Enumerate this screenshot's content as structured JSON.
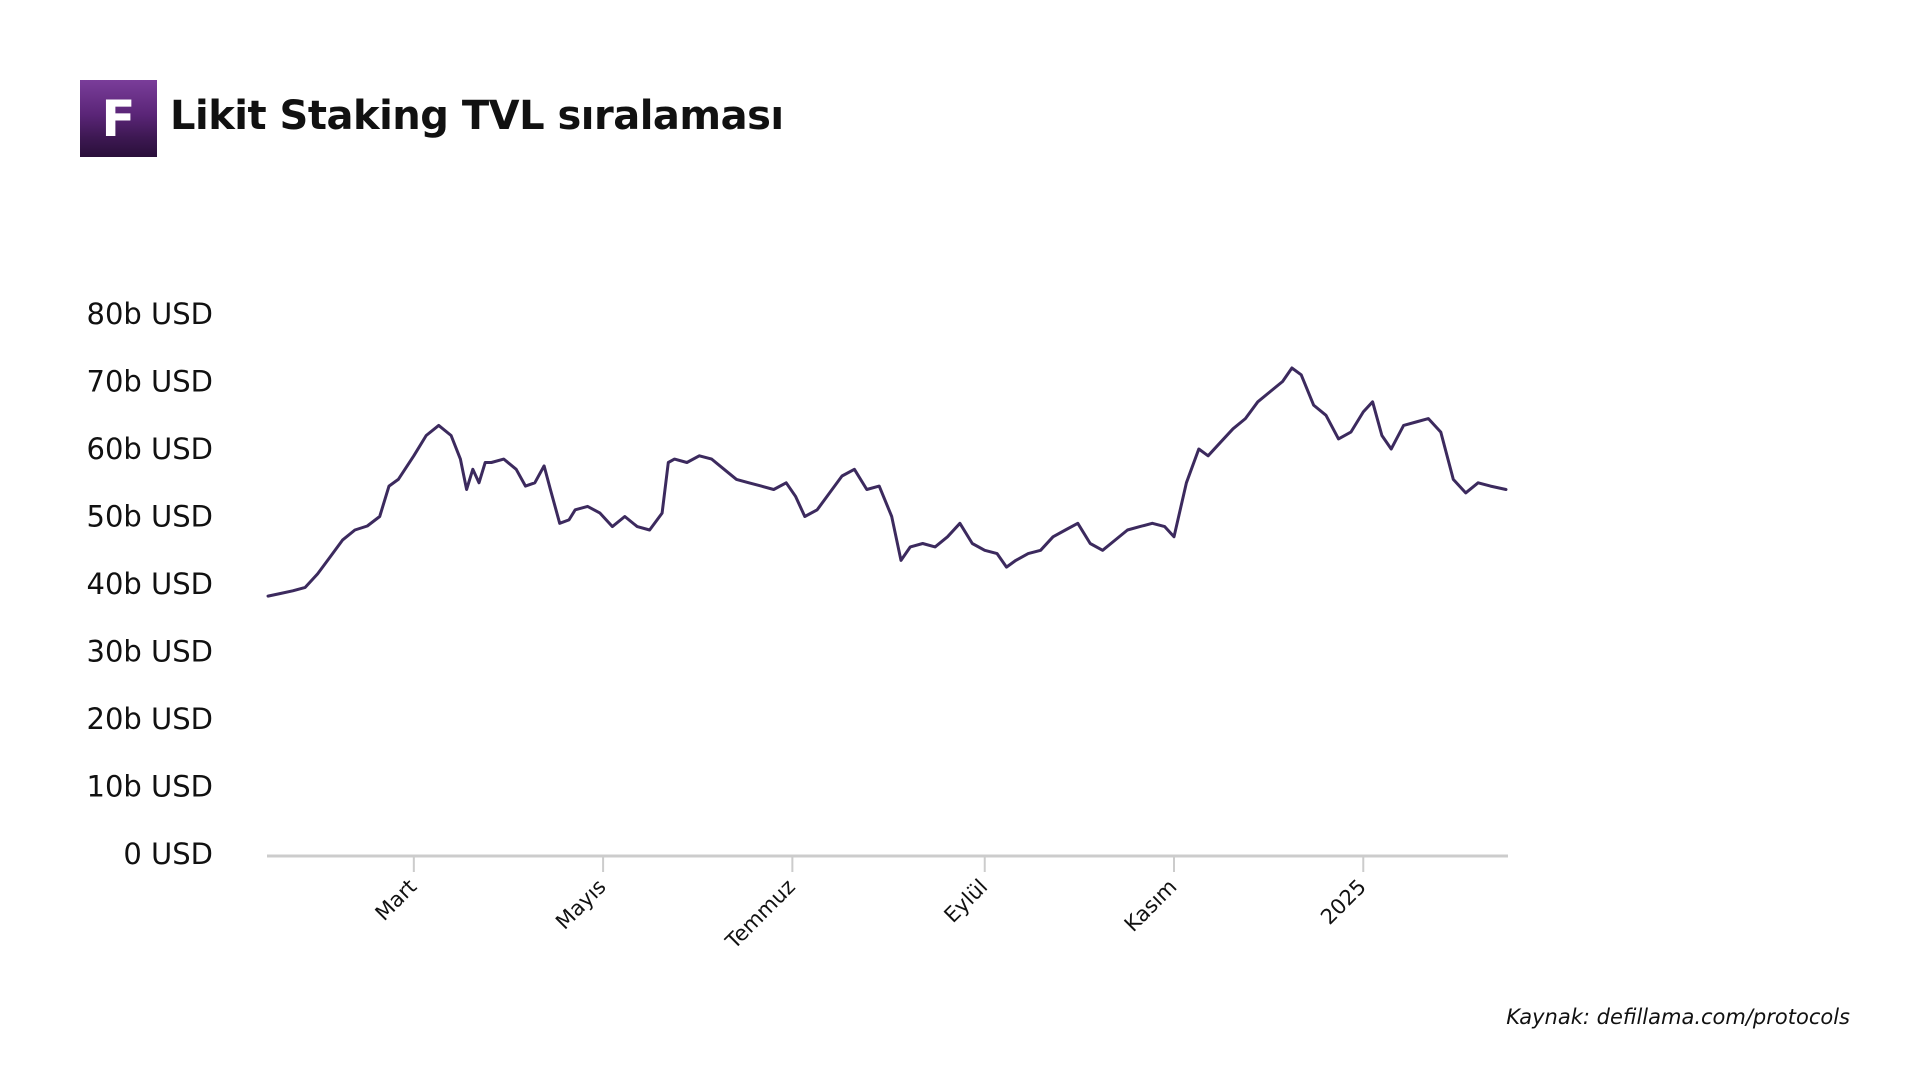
{
  "header": {
    "logo_letter": "F",
    "title": "Likit Staking TVL sıralaması"
  },
  "source": "Kaynak: defillama.com/protocols",
  "colors": {
    "line": "#3c2a5e",
    "axis": "#cccccc",
    "logo": "#5a2577"
  },
  "chart_data": {
    "type": "line",
    "title": "Likit Staking TVL sıralaması",
    "xlabel": "",
    "ylabel": "",
    "grid": false,
    "ylim": [
      0,
      80
    ],
    "yticks": [
      0,
      10,
      20,
      30,
      40,
      50,
      60,
      70,
      80
    ],
    "ytick_labels": [
      "0 USD",
      "10b USD",
      "20b USD",
      "30b USD",
      "40b USD",
      "50b USD",
      "60b USD",
      "70b USD",
      "80b USD"
    ],
    "xlim": [
      "2024-01-14",
      "2025-02-16"
    ],
    "xticks": [
      "2024-03-01",
      "2024-05-01",
      "2024-07-01",
      "2024-09-01",
      "2024-11-01",
      "2025-01-01"
    ],
    "xtick_labels": [
      "Mart",
      "Mayıs",
      "Temmuz",
      "Eylül",
      "Kasım",
      "2025"
    ],
    "series": [
      {
        "x": [
          "2024-01-14",
          "2024-01-18",
          "2024-01-22",
          "2024-01-26",
          "2024-01-30",
          "2024-02-03",
          "2024-02-07",
          "2024-02-11",
          "2024-02-15",
          "2024-02-19",
          "2024-02-22",
          "2024-02-25",
          "2024-03-01",
          "2024-03-05",
          "2024-03-09",
          "2024-03-13",
          "2024-03-16",
          "2024-03-18",
          "2024-03-20",
          "2024-03-22",
          "2024-03-24",
          "2024-03-26",
          "2024-03-30",
          "2024-04-03",
          "2024-04-06",
          "2024-04-09",
          "2024-04-12",
          "2024-04-14",
          "2024-04-17",
          "2024-04-20",
          "2024-04-22",
          "2024-04-26",
          "2024-04-30",
          "2024-05-04",
          "2024-05-08",
          "2024-05-12",
          "2024-05-16",
          "2024-05-20",
          "2024-05-22",
          "2024-05-24",
          "2024-05-28",
          "2024-06-01",
          "2024-06-05",
          "2024-06-09",
          "2024-06-13",
          "2024-06-17",
          "2024-06-21",
          "2024-06-25",
          "2024-06-29",
          "2024-07-02",
          "2024-07-05",
          "2024-07-09",
          "2024-07-13",
          "2024-07-17",
          "2024-07-21",
          "2024-07-25",
          "2024-07-29",
          "2024-08-02",
          "2024-08-05",
          "2024-08-08",
          "2024-08-12",
          "2024-08-16",
          "2024-08-20",
          "2024-08-24",
          "2024-08-28",
          "2024-09-01",
          "2024-09-05",
          "2024-09-08",
          "2024-09-11",
          "2024-09-15",
          "2024-09-19",
          "2024-09-23",
          "2024-09-27",
          "2024-10-01",
          "2024-10-05",
          "2024-10-09",
          "2024-10-13",
          "2024-10-17",
          "2024-10-21",
          "2024-10-25",
          "2024-10-29",
          "2024-11-01",
          "2024-11-05",
          "2024-11-09",
          "2024-11-12",
          "2024-11-16",
          "2024-11-20",
          "2024-11-24",
          "2024-11-28",
          "2024-12-02",
          "2024-12-06",
          "2024-12-09",
          "2024-12-12",
          "2024-12-16",
          "2024-12-20",
          "2024-12-24",
          "2024-12-28",
          "2025-01-01",
          "2025-01-04",
          "2025-01-07",
          "2025-01-10",
          "2025-01-14",
          "2025-01-18",
          "2025-01-22",
          "2025-01-26",
          "2025-01-30",
          "2025-02-03",
          "2025-02-07",
          "2025-02-11",
          "2025-02-16"
        ],
        "y": [
          38.2,
          38.6,
          39.0,
          39.5,
          41.5,
          44.0,
          46.5,
          48.0,
          48.6,
          50.0,
          54.5,
          55.5,
          59.0,
          62.0,
          63.5,
          62.0,
          58.5,
          54.0,
          57.0,
          55.0,
          58.0,
          58.0,
          58.5,
          57.0,
          54.5,
          55.0,
          57.5,
          54.0,
          49.0,
          49.5,
          51.0,
          51.5,
          50.5,
          48.5,
          50.0,
          48.5,
          48.0,
          50.5,
          58.0,
          58.5,
          58.0,
          59.0,
          58.5,
          57.0,
          55.5,
          55.0,
          54.5,
          54.0,
          55.0,
          53.0,
          50.0,
          51.0,
          53.5,
          56.0,
          57.0,
          54.0,
          54.5,
          50.0,
          43.5,
          45.5,
          46.0,
          45.5,
          47.0,
          49.0,
          46.0,
          45.0,
          44.5,
          42.5,
          43.5,
          44.5,
          45.0,
          47.0,
          48.0,
          49.0,
          46.0,
          45.0,
          46.5,
          48.0,
          48.5,
          49.0,
          48.5,
          47.0,
          55.0,
          60.0,
          59.0,
          61.0,
          63.0,
          64.5,
          67.0,
          68.5,
          70.0,
          72.0,
          71.0,
          66.5,
          65.0,
          61.5,
          62.5,
          65.5,
          67.0,
          62.0,
          60.0,
          63.5,
          64.0,
          64.5,
          62.5,
          55.5,
          53.5,
          55.0,
          54.5,
          54.0
        ]
      }
    ]
  }
}
